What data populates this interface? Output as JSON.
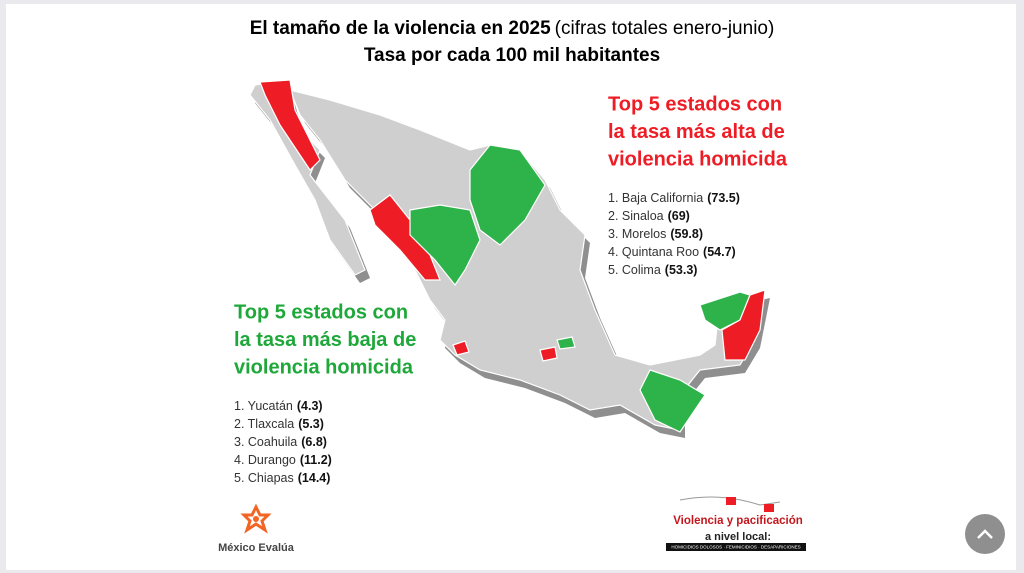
{
  "header": {
    "title": "El tamaño de la violencia en 2025",
    "title_note": "(cifras totales enero-junio)",
    "subtitle": "Tasa por cada 100 mil habitantes"
  },
  "top_high": {
    "heading": [
      "Top 5 estados con",
      "la tasa más alta de",
      "violencia homicida"
    ],
    "items": [
      {
        "label": "1. Baja California",
        "value": "(73.5)"
      },
      {
        "label": "2. Sinaloa",
        "value": "(69)"
      },
      {
        "label": "3. Morelos",
        "value": "(59.8)"
      },
      {
        "label": "4. Quintana Roo",
        "value": "(54.7)"
      },
      {
        "label": "5. Colima",
        "value": "(53.3)"
      }
    ]
  },
  "top_low": {
    "heading": [
      "Top 5 estados con",
      "la tasa más baja de",
      "violencia homicida"
    ],
    "items": [
      {
        "label": "1. Yucatán",
        "value": "(4.3)"
      },
      {
        "label": "2. Tlaxcala",
        "value": "(5.3)"
      },
      {
        "label": "3. Coahuila",
        "value": "(6.8)"
      },
      {
        "label": "4. Durango",
        "value": "(11.2)"
      },
      {
        "label": "5. Chiapas",
        "value": "(14.4)"
      }
    ]
  },
  "logos": {
    "left": "México Evalúa",
    "right_line1": "Violencia y pacificación",
    "right_line2": "a nivel local:",
    "right_strip": "HOMICIDIOS DOLOSOS · FEMINICIDIOS · DESAPARICIONES"
  }
}
